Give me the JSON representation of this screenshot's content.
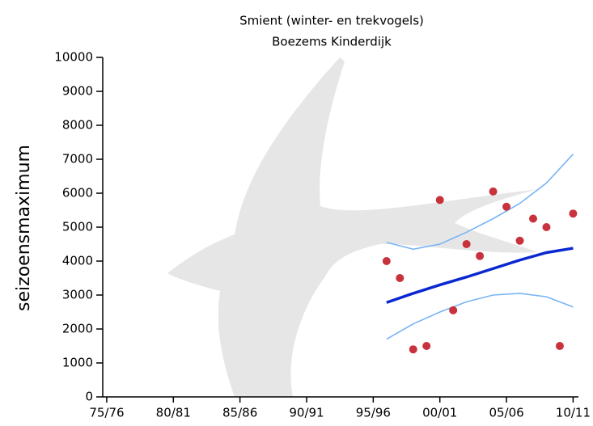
{
  "chart_data": {
    "type": "scatter",
    "title": "Smient (winter- en trekvogels)",
    "subtitle": "Boezems Kinderdijk",
    "ylabel": "seizoensmaximum",
    "xlim": [
      1974.7,
      2010.4
    ],
    "ylim": [
      0,
      10000
    ],
    "yticks": [
      0,
      1000,
      2000,
      3000,
      4000,
      5000,
      6000,
      7000,
      8000,
      9000,
      10000
    ],
    "xticks": [
      {
        "value": 1975,
        "label": "75/76"
      },
      {
        "value": 1980,
        "label": "80/81"
      },
      {
        "value": 1985,
        "label": "85/86"
      },
      {
        "value": 1990,
        "label": "90/91"
      },
      {
        "value": 1995,
        "label": "95/96"
      },
      {
        "value": 2000,
        "label": "00/01"
      },
      {
        "value": 2005,
        "label": "05/06"
      },
      {
        "value": 2010,
        "label": "10/11"
      }
    ],
    "points": {
      "color": "#c8323c",
      "x": [
        1996,
        1997,
        1998,
        1999,
        2000,
        2001,
        2002,
        2003,
        2004,
        2005,
        2006,
        2007,
        2008,
        2009,
        2010
      ],
      "values": [
        4000,
        3500,
        1400,
        1500,
        5800,
        2550,
        4500,
        4150,
        6050,
        5600,
        4600,
        5250,
        5000,
        1500,
        5400
      ]
    },
    "trend": {
      "color": "#0a28d2",
      "x": [
        1996,
        1998,
        2000,
        2002,
        2004,
        2006,
        2008,
        2010
      ],
      "values": [
        2780,
        3050,
        3300,
        3530,
        3780,
        4030,
        4250,
        4380
      ]
    },
    "upper_band": {
      "color": "#78b4f5",
      "x": [
        1996,
        1998,
        2000,
        2002,
        2004,
        2006,
        2008,
        2010
      ],
      "values": [
        4550,
        4350,
        4500,
        4850,
        5250,
        5700,
        6300,
        7150
      ]
    },
    "lower_band": {
      "color": "#78b4f5",
      "x": [
        1996,
        1998,
        2000,
        2002,
        2004,
        2006,
        2008,
        2010
      ],
      "values": [
        1700,
        2150,
        2500,
        2800,
        3000,
        3050,
        2950,
        2650
      ]
    }
  }
}
